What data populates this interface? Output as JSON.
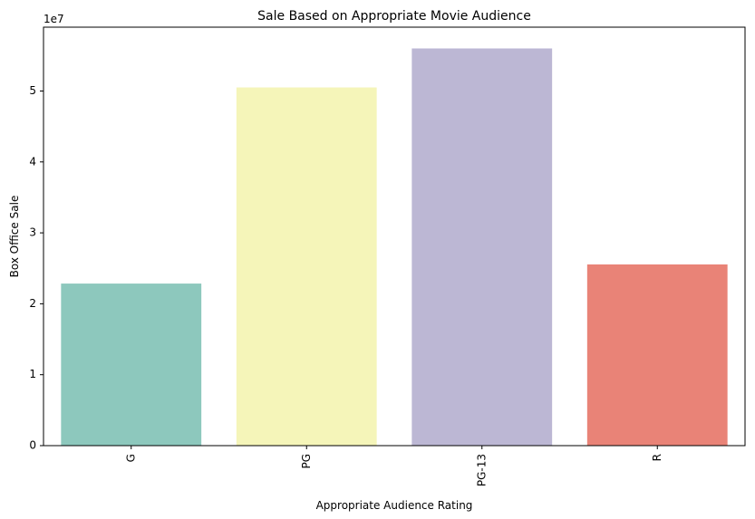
{
  "chart_data": {
    "type": "bar",
    "title": "Sale Based on Appropriate Movie Audience",
    "xlabel": "Appropriate Audience Rating",
    "ylabel": "Box Office Sale",
    "offset_label": "1e7",
    "categories": [
      "G",
      "PG",
      "PG-13",
      "R"
    ],
    "values": [
      22850000,
      50500000,
      56000000,
      25550000
    ],
    "colors": [
      "#8dc8bd",
      "#f5f5b9",
      "#bcb7d4",
      "#e98377"
    ],
    "ylim": [
      0,
      59000000
    ],
    "yticks": [
      0,
      10000000,
      20000000,
      30000000,
      40000000,
      50000000
    ],
    "ytick_labels": [
      "0",
      "1",
      "2",
      "3",
      "4",
      "5"
    ],
    "grid": false,
    "legend": "none"
  }
}
